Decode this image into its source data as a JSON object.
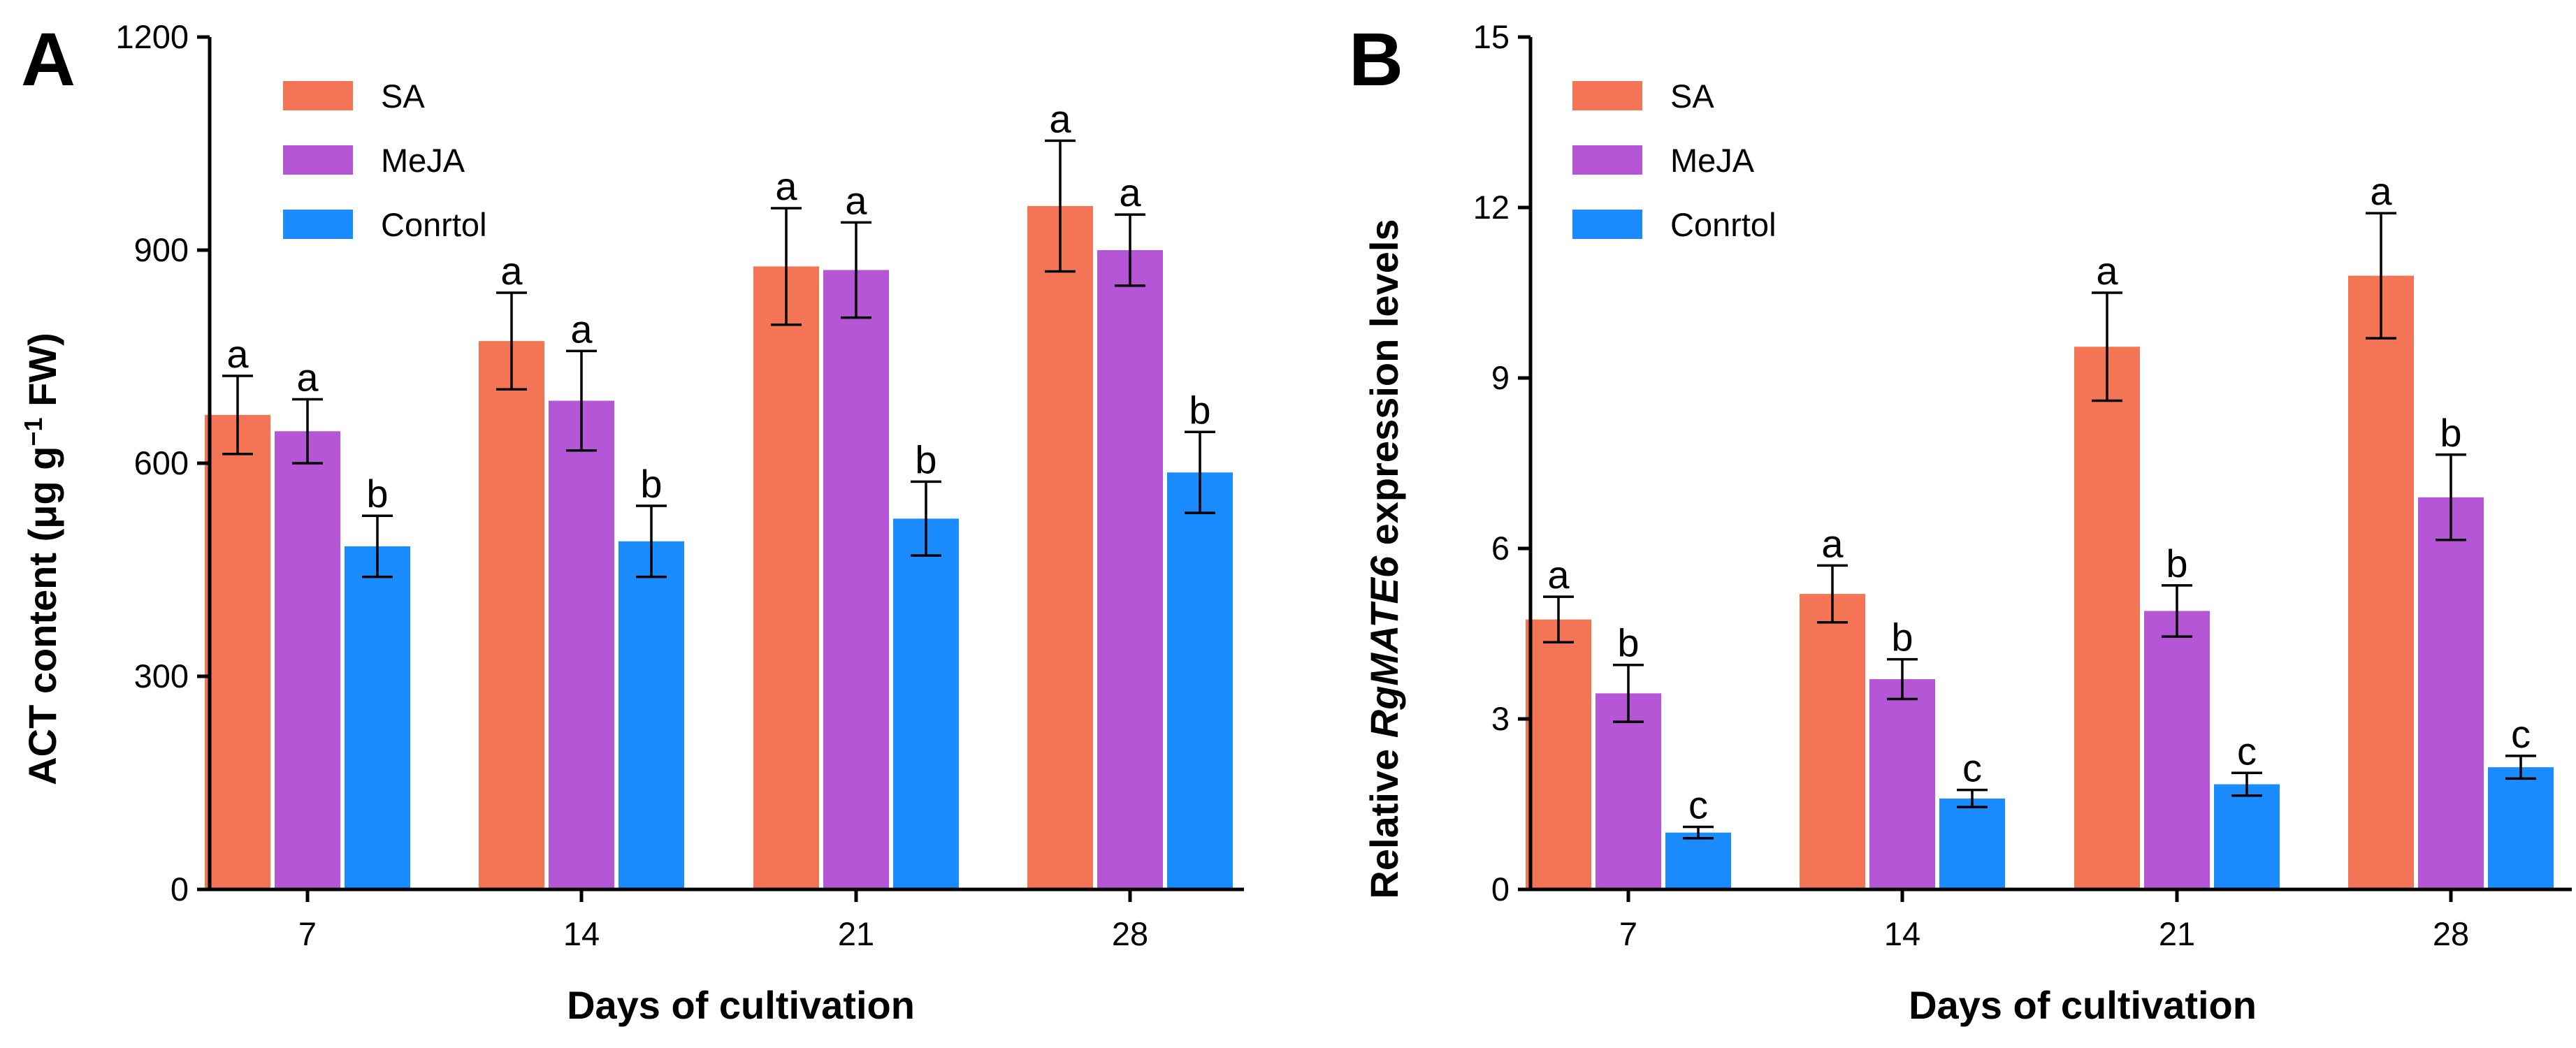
{
  "colors": {
    "SA": "#F47555",
    "MeJA": "#B556D6",
    "Control": "#1A8CFF"
  },
  "legend": [
    "SA",
    "MeJA",
    "Conrtol"
  ],
  "chart_data": [
    {
      "type": "bar",
      "panel": "A",
      "title": "",
      "xlabel": "Days of cultivation",
      "ylabel": "ACT content (μg g",
      "ylabel_exp": "−1",
      "ylabel_tail": " FW)",
      "ylim": [
        0,
        1200
      ],
      "yticks": [
        0,
        300,
        600,
        900,
        1200
      ],
      "categories": [
        "7",
        "14",
        "21",
        "28"
      ],
      "series": [
        {
          "name": "SA",
          "values": [
            668,
            772,
            877,
            962
          ],
          "errors": [
            55,
            68,
            82,
            92
          ],
          "letters": [
            "a",
            "a",
            "a",
            "a"
          ]
        },
        {
          "name": "MeJA",
          "values": [
            645,
            688,
            872,
            900
          ],
          "errors": [
            45,
            70,
            67,
            50
          ],
          "letters": [
            "a",
            "a",
            "a",
            "a"
          ]
        },
        {
          "name": "Conrtol",
          "values": [
            483,
            490,
            522,
            587
          ],
          "errors": [
            43,
            50,
            52,
            57
          ],
          "letters": [
            "b",
            "b",
            "b",
            "b"
          ]
        }
      ]
    },
    {
      "type": "bar",
      "panel": "B",
      "title": "",
      "xlabel": "Days of cultivation",
      "ylabel_pre": "Relative ",
      "ylabel_italic": "RgMATE6",
      "ylabel_post": " expression levels",
      "ylim": [
        0,
        15
      ],
      "yticks": [
        0,
        3,
        6,
        9,
        12,
        15
      ],
      "categories": [
        "7",
        "14",
        "21",
        "28"
      ],
      "series": [
        {
          "name": "SA",
          "values": [
            4.75,
            5.2,
            9.55,
            10.8
          ],
          "errors": [
            0.4,
            0.5,
            0.95,
            1.1
          ],
          "letters": [
            "a",
            "a",
            "a",
            "a"
          ]
        },
        {
          "name": "MeJA",
          "values": [
            3.45,
            3.7,
            4.9,
            6.9
          ],
          "errors": [
            0.5,
            0.35,
            0.45,
            0.75
          ],
          "letters": [
            "b",
            "b",
            "b",
            "b"
          ]
        },
        {
          "name": "Conrtol",
          "values": [
            1.0,
            1.6,
            1.85,
            2.15
          ],
          "errors": [
            0.1,
            0.15,
            0.2,
            0.2
          ],
          "letters": [
            "c",
            "c",
            "c",
            "c"
          ]
        }
      ]
    }
  ]
}
